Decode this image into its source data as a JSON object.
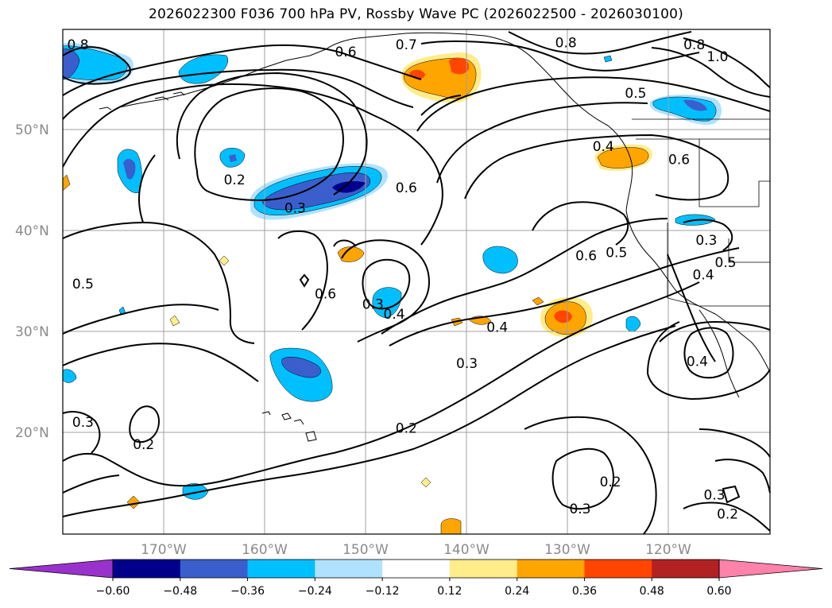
{
  "title": "2026022300 F036 700 hPa PV, Rossby Wave PC (2026022500 - 2026030100)",
  "map": {
    "lat_labels": [
      "50°N",
      "40°N",
      "30°N",
      "20°N"
    ],
    "lon_labels": [
      "170°W",
      "160°W",
      "150°W",
      "140°W",
      "130°W",
      "120°W"
    ],
    "contour_labels": [
      {
        "text": "0.8",
        "lon": -178.5,
        "lat": 58.2
      },
      {
        "text": "0.7",
        "lon": -146.0,
        "lat": 58.2
      },
      {
        "text": "0.6",
        "lon": -152.0,
        "lat": 57.5
      },
      {
        "text": "0.8",
        "lon": -130.2,
        "lat": 58.4
      },
      {
        "text": "0.8",
        "lon": -117.5,
        "lat": 58.2
      },
      {
        "text": "1.0",
        "lon": -115.2,
        "lat": 57.0
      },
      {
        "text": "0.5",
        "lon": -123.3,
        "lat": 53.4
      },
      {
        "text": "0.4",
        "lon": -126.5,
        "lat": 48.1
      },
      {
        "text": "0.6",
        "lon": -119.0,
        "lat": 46.8
      },
      {
        "text": "0.2",
        "lon": -163.0,
        "lat": 44.8
      },
      {
        "text": "0.3",
        "lon": -157.0,
        "lat": 42.0
      },
      {
        "text": "0.6",
        "lon": -146.0,
        "lat": 44.0
      },
      {
        "text": "0.6",
        "lon": -128.2,
        "lat": 37.3
      },
      {
        "text": "0.5",
        "lon": -125.2,
        "lat": 37.6
      },
      {
        "text": "0.3",
        "lon": -116.3,
        "lat": 38.8
      },
      {
        "text": "0.5",
        "lon": -114.4,
        "lat": 36.6
      },
      {
        "text": "0.4",
        "lon": -116.6,
        "lat": 35.4
      },
      {
        "text": "0.5",
        "lon": -178.0,
        "lat": 34.5
      },
      {
        "text": "0.6",
        "lon": -154.0,
        "lat": 33.5
      },
      {
        "text": "0.3",
        "lon": -149.3,
        "lat": 32.5
      },
      {
        "text": "0.4",
        "lon": -147.2,
        "lat": 31.5
      },
      {
        "text": "0.4",
        "lon": -137.0,
        "lat": 30.2
      },
      {
        "text": "0.4",
        "lon": -117.2,
        "lat": 26.8
      },
      {
        "text": "0.3",
        "lon": -140.0,
        "lat": 26.6
      },
      {
        "text": "0.3",
        "lon": -178.0,
        "lat": 20.8
      },
      {
        "text": "0.2",
        "lon": -146.0,
        "lat": 20.2
      },
      {
        "text": "0.2",
        "lon": -172.0,
        "lat": 18.6
      },
      {
        "text": "0.2",
        "lon": -125.8,
        "lat": 14.9
      },
      {
        "text": "0.3",
        "lon": -115.5,
        "lat": 13.6
      },
      {
        "text": "0.3",
        "lon": -128.8,
        "lat": 12.2
      },
      {
        "text": "0.2",
        "lon": -114.2,
        "lat": 11.7
      }
    ]
  },
  "colorbar": {
    "ticks": [
      "−0.60",
      "−0.48",
      "−0.36",
      "−0.24",
      "−0.12",
      "0.12",
      "0.24",
      "0.36",
      "0.48",
      "0.60"
    ],
    "colors": [
      "#9932cc",
      "#00008b",
      "#3a5fcd",
      "#00bfff",
      "#b0e2ff",
      "#ffffff",
      "#ffec8b",
      "#ffa500",
      "#ff4500",
      "#b22222",
      "#ff82ab"
    ]
  }
}
